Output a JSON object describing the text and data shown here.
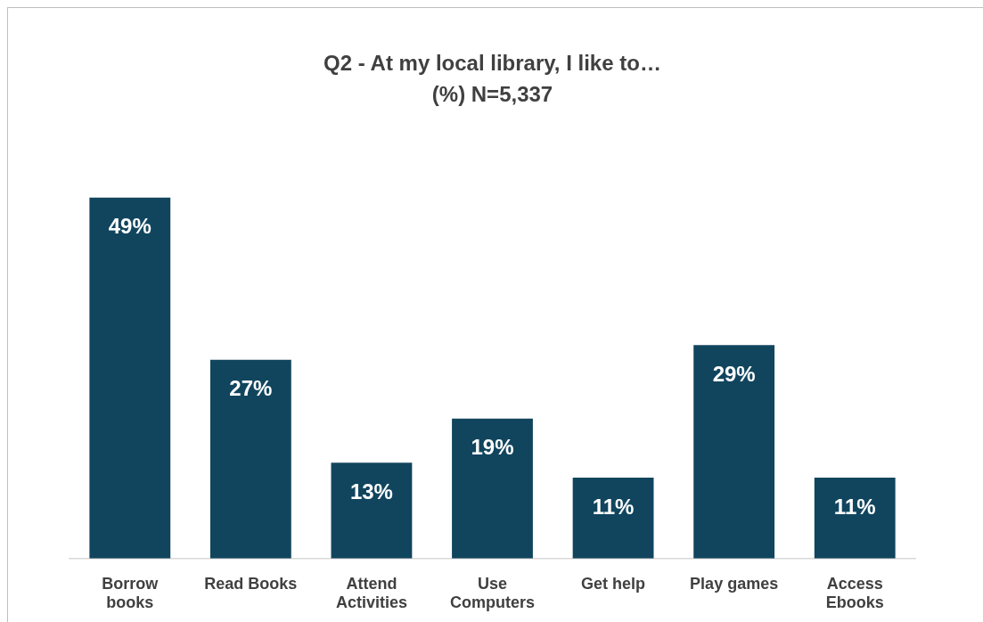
{
  "chart_data": {
    "type": "bar",
    "title": "Q2 - At my local library, I like to…",
    "subtitle": "(%) N=5,337",
    "categories": [
      "Borrow books",
      "Read Books",
      "Attend Activities",
      "Use Computers",
      "Get help",
      "Play games",
      "Access Ebooks"
    ],
    "values": [
      49,
      27,
      13,
      19,
      11,
      29,
      11
    ],
    "color": "#11455e",
    "value_labels": [
      "49%",
      "27%",
      "13%",
      "19%",
      "11%",
      "29%",
      "11%"
    ],
    "grid": false,
    "legend": false
  }
}
